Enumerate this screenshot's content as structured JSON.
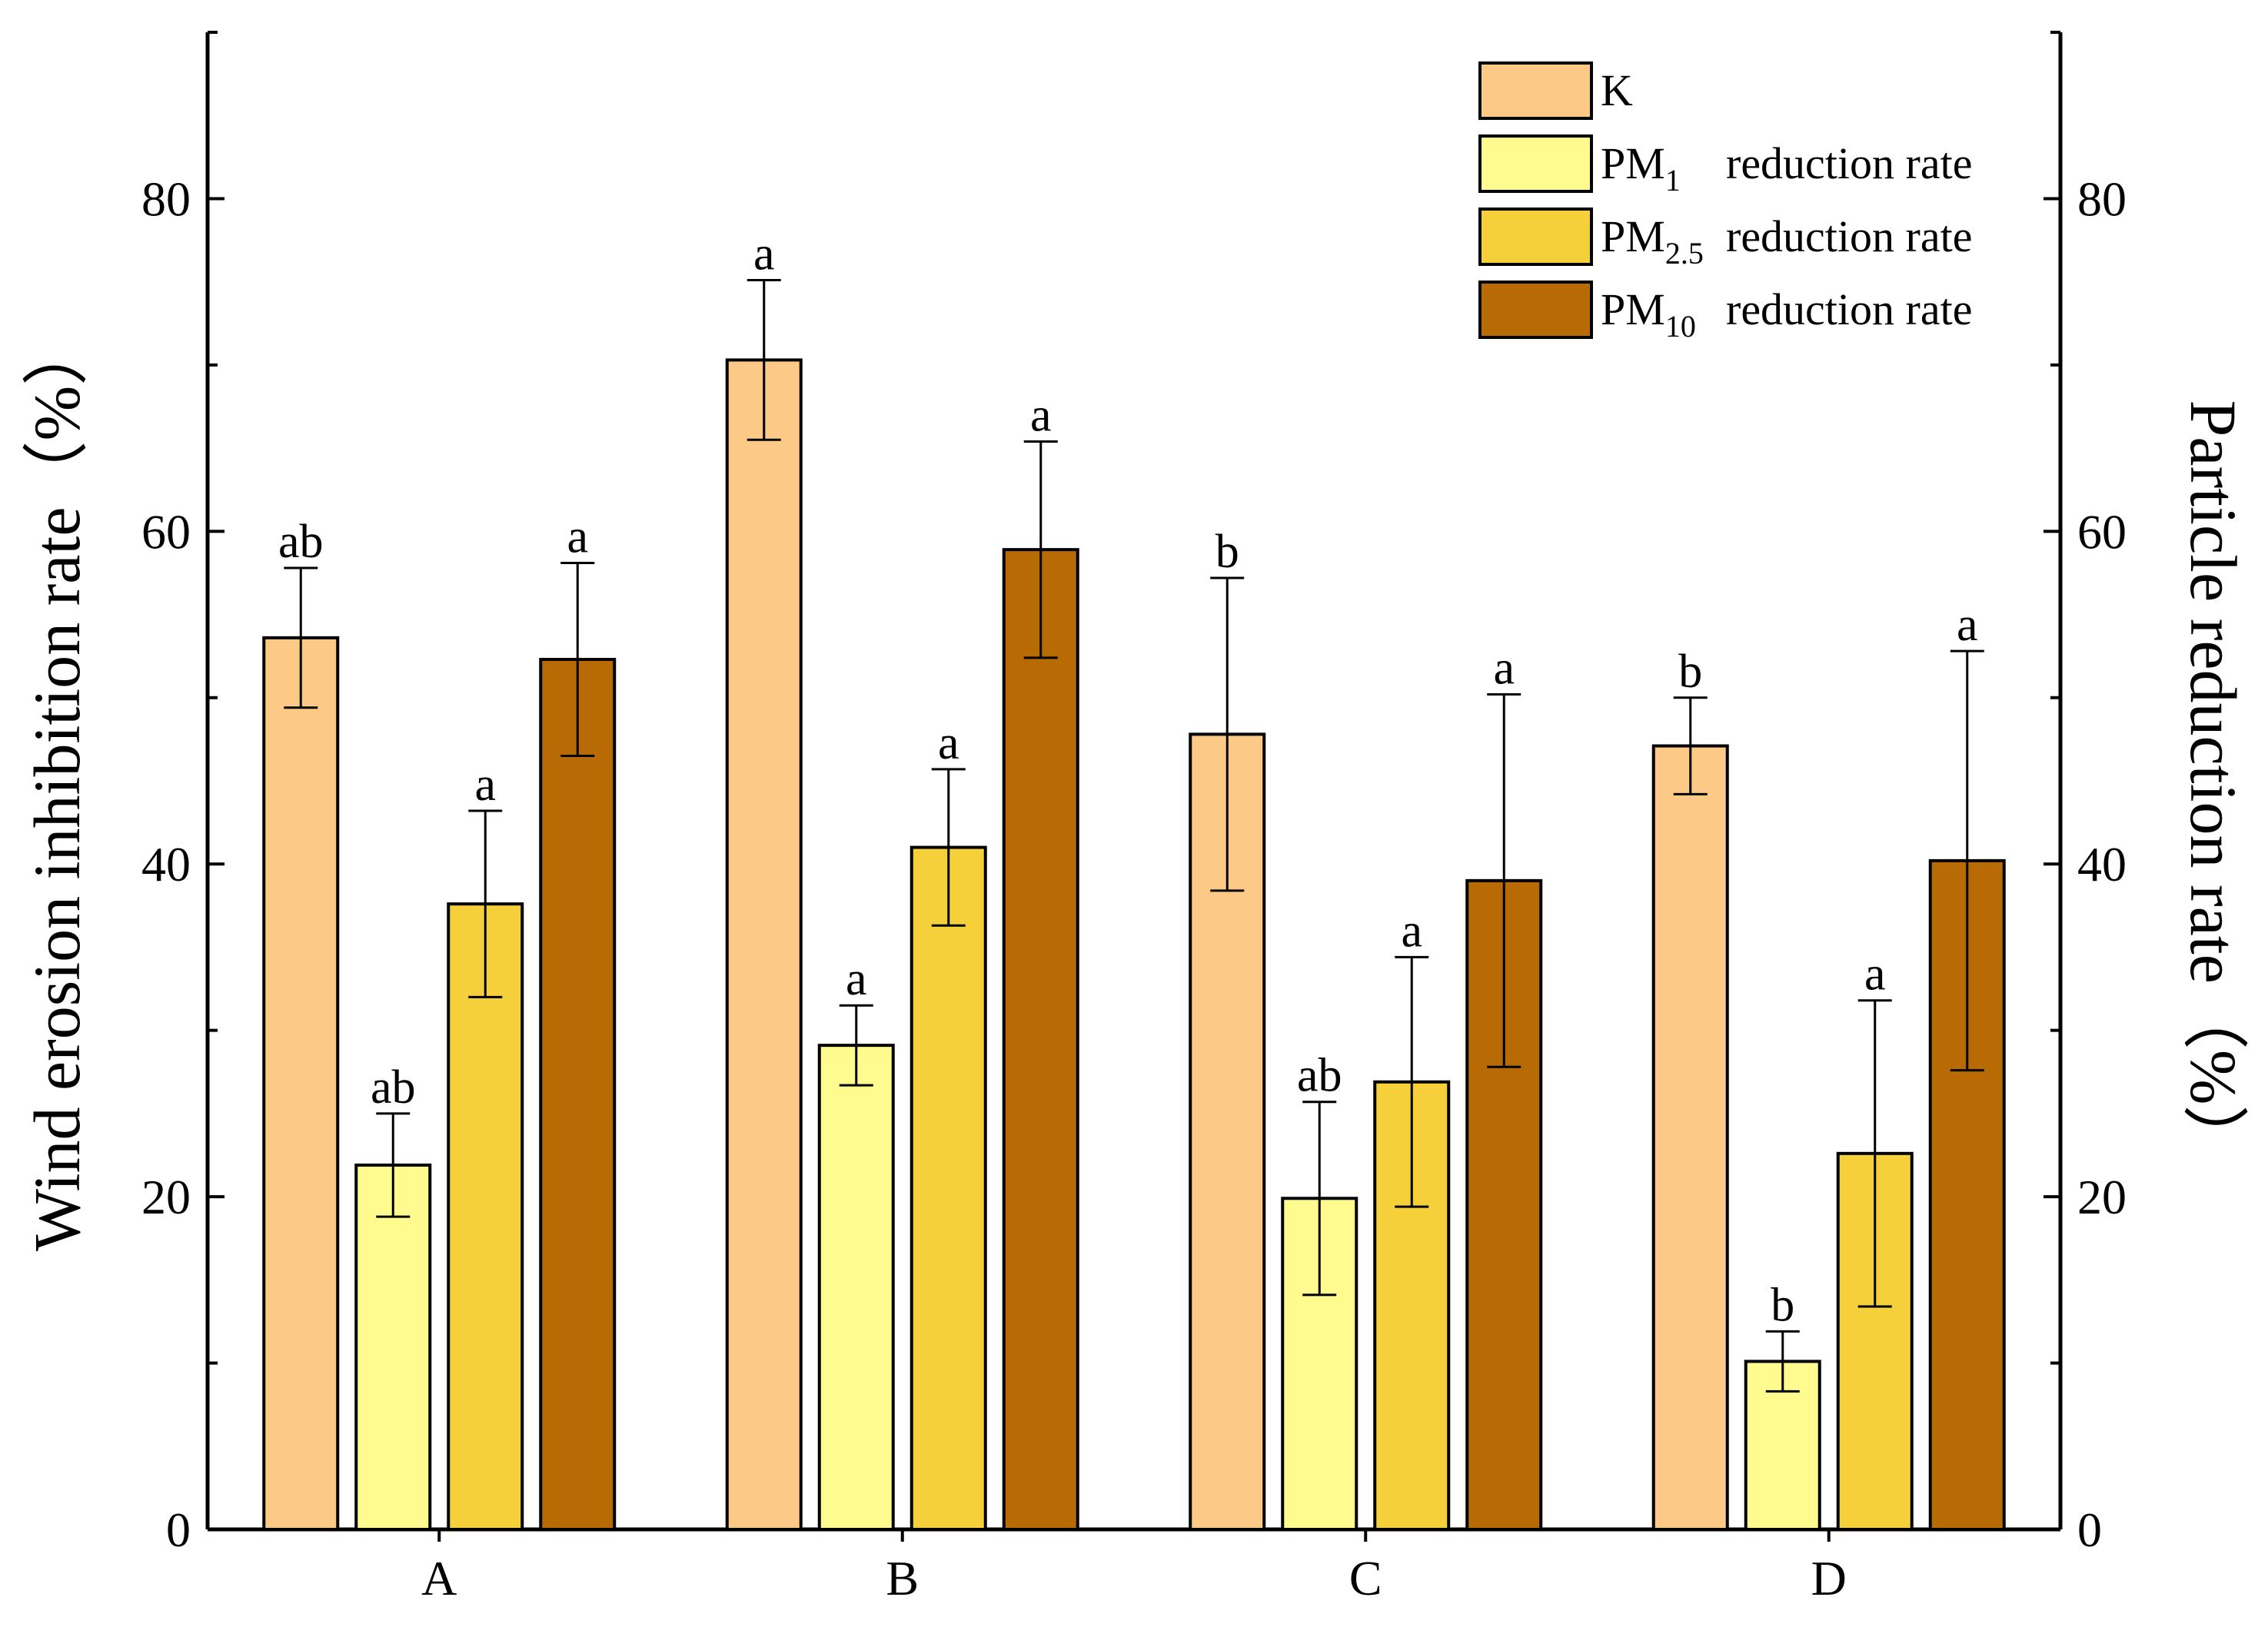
{
  "chart_data": {
    "type": "bar",
    "title": "",
    "xlabel": "",
    "ylabel_left": "Wind erosion inhibition rate（%）",
    "ylabel_right": "Particle reduction rate（%）",
    "ylim": [
      0,
      90
    ],
    "y_ticks": [
      0,
      20,
      40,
      60,
      80
    ],
    "grid": false,
    "legend_position": "top-right",
    "categories": [
      "A",
      "B",
      "C",
      "D"
    ],
    "series": [
      {
        "name": "K",
        "legend": {
          "base": "K",
          "sub": "",
          "suffix": ""
        },
        "color": "#FCC987",
        "values": [
          53.6,
          70.3,
          47.8,
          47.1
        ],
        "errors": [
          4.2,
          4.8,
          9.4,
          2.9
        ],
        "significance": [
          "ab",
          "a",
          "b",
          "b"
        ]
      },
      {
        "name": "PM1 reduction rate",
        "legend": {
          "base": "PM",
          "sub": "1",
          "suffix": "reduction rate"
        },
        "color": "#FFFB8F",
        "values": [
          21.9,
          29.1,
          19.9,
          10.1
        ],
        "errors": [
          3.1,
          2.4,
          5.8,
          1.8
        ],
        "significance": [
          "ab",
          "a",
          "ab",
          "b"
        ]
      },
      {
        "name": "PM2.5 reduction rate",
        "legend": {
          "base": "PM",
          "sub": "2.5",
          "suffix": "reduction rate"
        },
        "color": "#F5D03A",
        "values": [
          37.6,
          41.0,
          26.9,
          22.6
        ],
        "errors": [
          5.6,
          4.7,
          7.5,
          9.2
        ],
        "significance": [
          "a",
          "a",
          "a",
          "a"
        ]
      },
      {
        "name": "PM10 reduction rate",
        "legend": {
          "base": "PM",
          "sub": "10",
          "suffix": "reduction rate"
        },
        "color": "#B86A05",
        "values": [
          52.3,
          58.9,
          39.0,
          40.2
        ],
        "errors": [
          5.8,
          6.5,
          11.2,
          12.6
        ],
        "significance": [
          "a",
          "a",
          "a",
          "a"
        ]
      }
    ]
  }
}
